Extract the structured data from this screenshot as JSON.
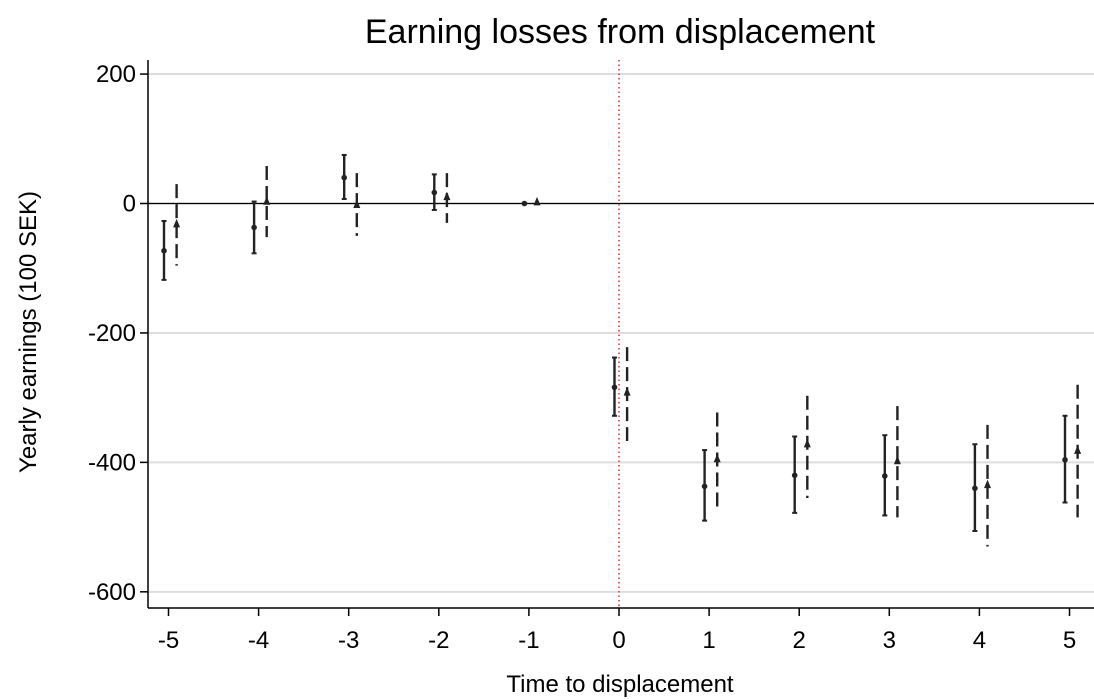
{
  "chart_data": {
    "type": "scatter",
    "title": "Earning losses from displacement",
    "xlabel": "Time to displacement",
    "ylabel": "Yearly earnings (100 SEK)",
    "xlim": [
      -5.2,
      5.3
    ],
    "ylim": [
      -630,
      220
    ],
    "x_ticks": [
      -5,
      -4,
      -3,
      -2,
      -1,
      0,
      1,
      2,
      3,
      4,
      5
    ],
    "y_ticks": [
      200,
      0,
      -200,
      -400,
      -600
    ],
    "grid": true,
    "reference_lines": {
      "horizontal_y": 0,
      "vertical_x": 0
    },
    "colors": {
      "marks": "#222222",
      "vline": "#e03030",
      "grid": "#dddddd",
      "zero_line": "#000000"
    },
    "series": [
      {
        "marker": "circle",
        "line_style": "solid",
        "offset": -0.05,
        "points": [
          {
            "x": -5,
            "y": -73,
            "lo": -118,
            "hi": -27
          },
          {
            "x": -4,
            "y": -37,
            "lo": -77,
            "hi": 3
          },
          {
            "x": -3,
            "y": 40,
            "lo": 7,
            "hi": 75
          },
          {
            "x": -2,
            "y": 17,
            "lo": -10,
            "hi": 45
          },
          {
            "x": -1,
            "y": 0,
            "lo": 0,
            "hi": 0
          },
          {
            "x": 0,
            "y": -284,
            "lo": -328,
            "hi": -238
          },
          {
            "x": 1,
            "y": -437,
            "lo": -490,
            "hi": -381
          },
          {
            "x": 2,
            "y": -420,
            "lo": -478,
            "hi": -360
          },
          {
            "x": 3,
            "y": -421,
            "lo": -482,
            "hi": -358
          },
          {
            "x": 4,
            "y": -440,
            "lo": -506,
            "hi": -372
          },
          {
            "x": 5,
            "y": -396,
            "lo": -462,
            "hi": -328
          }
        ]
      },
      {
        "marker": "triangle",
        "line_style": "dashed",
        "offset": 0.09,
        "points": [
          {
            "x": -5,
            "y": -33,
            "lo": -96,
            "hi": 30
          },
          {
            "x": -4,
            "y": 2,
            "lo": -52,
            "hi": 58
          },
          {
            "x": -3,
            "y": -3,
            "lo": -50,
            "hi": 47
          },
          {
            "x": -2,
            "y": 9,
            "lo": -30,
            "hi": 47
          },
          {
            "x": -1,
            "y": 1,
            "lo": 1,
            "hi": 1
          },
          {
            "x": 0,
            "y": -293,
            "lo": -367,
            "hi": -222
          },
          {
            "x": 1,
            "y": -396,
            "lo": -470,
            "hi": -323
          },
          {
            "x": 2,
            "y": -373,
            "lo": -455,
            "hi": -297
          },
          {
            "x": 3,
            "y": -399,
            "lo": -485,
            "hi": -313
          },
          {
            "x": 4,
            "y": -436,
            "lo": -530,
            "hi": -342
          },
          {
            "x": 5,
            "y": -383,
            "lo": -485,
            "hi": -280
          }
        ]
      }
    ]
  }
}
